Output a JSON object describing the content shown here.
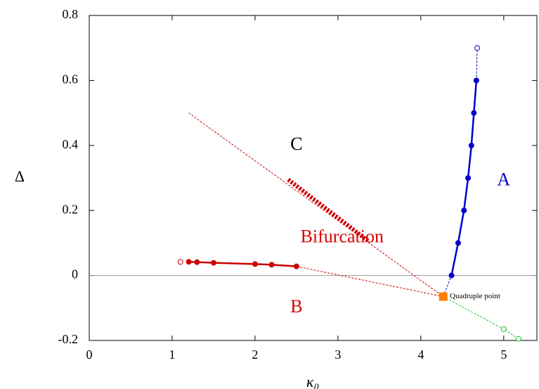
{
  "chart_data": {
    "type": "line",
    "x_label": "κ₀",
    "y_label": "Δ",
    "xlim": [
      0,
      5.4
    ],
    "ylim": [
      -0.2,
      0.8
    ],
    "xticks": [
      0,
      1,
      2,
      3,
      4,
      5
    ],
    "yticks": [
      -0.2,
      0,
      0.2,
      0.4,
      0.6,
      0.8
    ],
    "zero_line": true,
    "series": [
      {
        "color": "#0000cc",
        "line": "solid",
        "marker": "filled",
        "x": [
          4.37,
          4.45,
          4.52,
          4.57,
          4.61,
          4.64,
          4.67
        ],
        "values": [
          0,
          0.1,
          0.2,
          0.3,
          0.4,
          0.5,
          0.6
        ]
      },
      {
        "color": "#0000cc",
        "line": "dashed",
        "marker": "none",
        "x": [
          4.27,
          4.37
        ],
        "values": [
          -0.065,
          0
        ]
      },
      {
        "color": "#0000cc",
        "line": "dashed",
        "marker": "none",
        "x": [
          4.67,
          4.68
        ],
        "values": [
          0.6,
          0.7
        ]
      },
      {
        "color": "#0000cc",
        "line": "none",
        "marker": "open",
        "x": [
          4.68
        ],
        "values": [
          0.7
        ]
      },
      {
        "color": "#cc0000",
        "line": "solid",
        "marker": "filled",
        "x": [
          1.2,
          1.3,
          1.5,
          2.0,
          2.2,
          2.5
        ],
        "values": [
          0.042,
          0.041,
          0.039,
          0.035,
          0.033,
          0.028
        ]
      },
      {
        "color": "#cc0000",
        "line": "none",
        "marker": "open",
        "x": [
          1.1
        ],
        "values": [
          0.042
        ]
      },
      {
        "color": "#cc0000",
        "line": "dashed",
        "marker": "none",
        "x": [
          2.5,
          4.27
        ],
        "values": [
          0.028,
          -0.065
        ]
      },
      {
        "color": "#cc0000",
        "line": "dashed",
        "marker": "none",
        "x": [
          1.2,
          4.27
        ],
        "values": [
          0.5,
          -0.065
        ]
      },
      {
        "color": "#cc0000",
        "line": "thick-dashed",
        "marker": "none",
        "x": [
          2.4,
          3.37
        ],
        "values": [
          0.295,
          0.105
        ]
      },
      {
        "color": "#22bb22",
        "line": "dashed",
        "marker": "none",
        "x": [
          4.27,
          5.0,
          5.18
        ],
        "values": [
          -0.065,
          -0.165,
          -0.195
        ]
      },
      {
        "color": "#22bb22",
        "line": "none",
        "marker": "open",
        "x": [
          5.0,
          5.18
        ],
        "values": [
          -0.165,
          -0.195
        ]
      },
      {
        "color": "#ff8000",
        "line": "none",
        "marker": "square",
        "x": [
          4.27
        ],
        "values": [
          -0.065
        ]
      }
    ],
    "annotations": [
      {
        "text": "C",
        "x": 2.5,
        "y": 0.4,
        "color": "#000000"
      },
      {
        "text": "A",
        "x": 5.0,
        "y": 0.29,
        "color": "#0000cc"
      },
      {
        "text": "Bifurcation",
        "x": 3.05,
        "y": 0.115,
        "color": "#dd0000"
      },
      {
        "text": "B",
        "x": 2.5,
        "y": -0.1,
        "color": "#dd0000"
      },
      {
        "text": "Quadruple point",
        "x": 4.35,
        "y": -0.065,
        "color": "#000000"
      }
    ]
  }
}
